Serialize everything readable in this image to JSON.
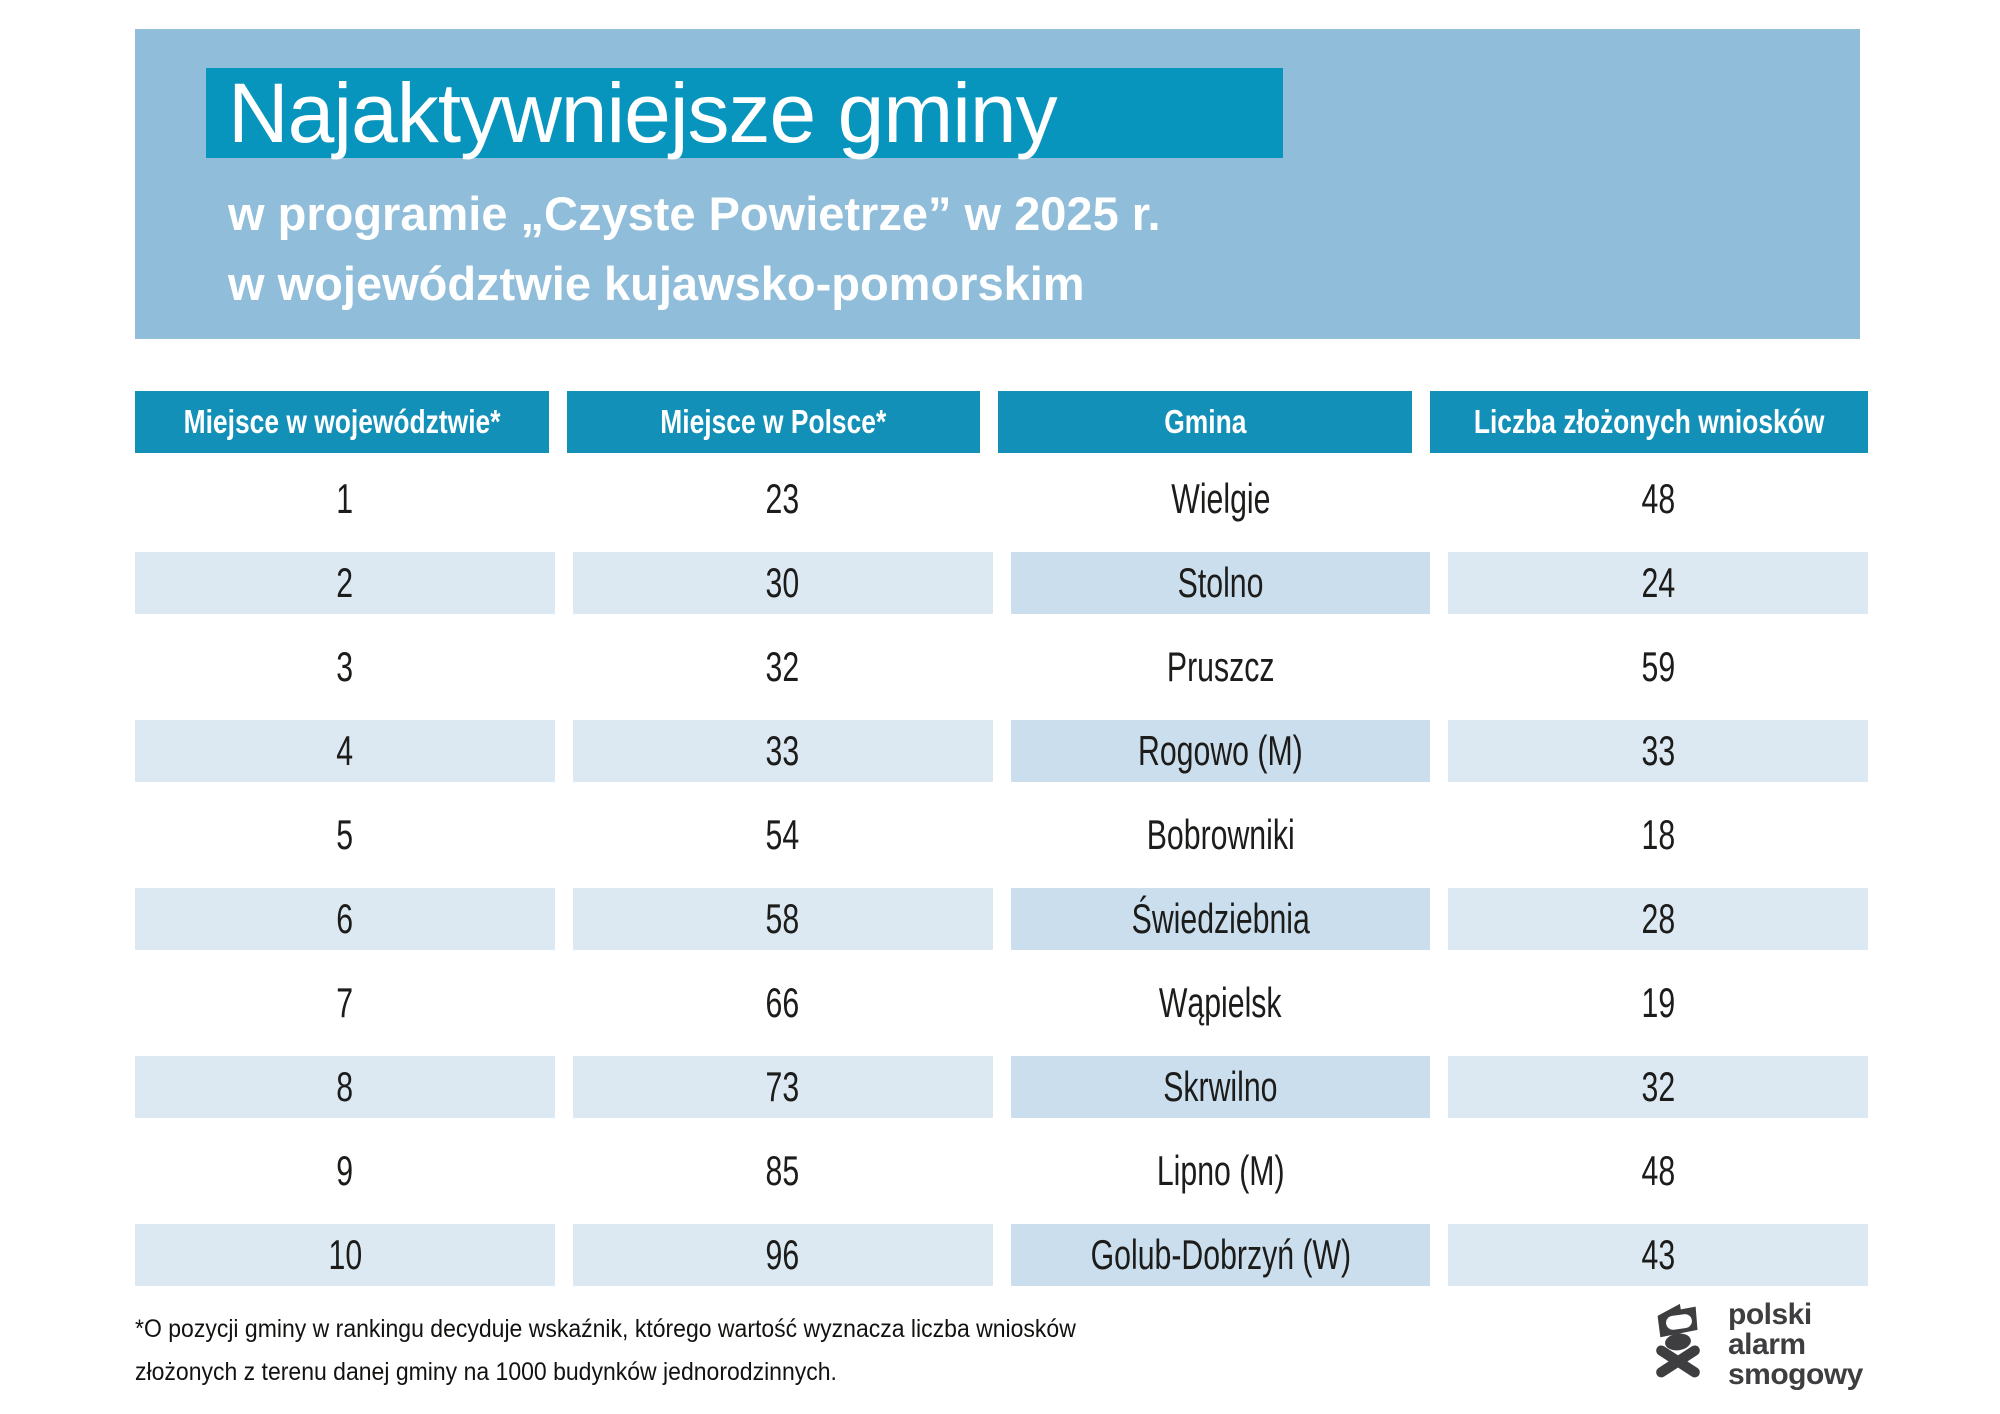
{
  "colors": {
    "banner_blue": "#8fbdda",
    "title_box_teal": "#0794bd",
    "header_teal": "#1290b8",
    "row_stripe": "#dce9f3",
    "row_stripe_gmina": "#cbdeed",
    "text_dark": "#1c1c1a",
    "logo_gray": "#3e3e40"
  },
  "header": {
    "title": "Najaktywniejsze gminy",
    "subtitle_line1": "w programie „Czyste Powietrze” w 2025 r.",
    "subtitle_line2": "w województwie kujawsko-pomorskim"
  },
  "chart_data": {
    "type": "table",
    "title": "Najaktywniejsze gminy w programie „Czyste Powietrze” w 2025 r. w województwie kujawsko-pomorskim",
    "columns": [
      "Miejsce w województwie*",
      "Miejsce w Polsce*",
      "Gmina",
      "Liczba złożonych wniosków"
    ],
    "rows": [
      [
        "1",
        "23",
        "Wielgie",
        "48"
      ],
      [
        "2",
        "30",
        "Stolno",
        "24"
      ],
      [
        "3",
        "32",
        "Pruszcz",
        "59"
      ],
      [
        "4",
        "33",
        "Rogowo (M)",
        "33"
      ],
      [
        "5",
        "54",
        "Bobrowniki",
        "18"
      ],
      [
        "6",
        "58",
        "Świedziebnia",
        "28"
      ],
      [
        "7",
        "66",
        "Wąpielsk",
        "19"
      ],
      [
        "8",
        "73",
        "Skrwilno",
        "32"
      ],
      [
        "9",
        "85",
        "Lipno (M)",
        "48"
      ],
      [
        "10",
        "96",
        "Golub-Dobrzyń (W)",
        "43"
      ]
    ],
    "footnote": "*O pozycji gminy w rankingu decyduje wskaźnik, którego wartość wyznacza liczba wniosków złożonych z terenu danej gminy na 1000 budynków jednorodzinnych."
  },
  "footnote": {
    "line1": "*O pozycji gminy w rankingu decyduje wskaźnik, którego wartość wyznacza liczba wniosków",
    "line2": "złożonych z terenu danej gminy na 1000 budynków jednorodzinnych."
  },
  "logo": {
    "line1": "polski",
    "line2": "alarm",
    "line3": "smogowy"
  }
}
